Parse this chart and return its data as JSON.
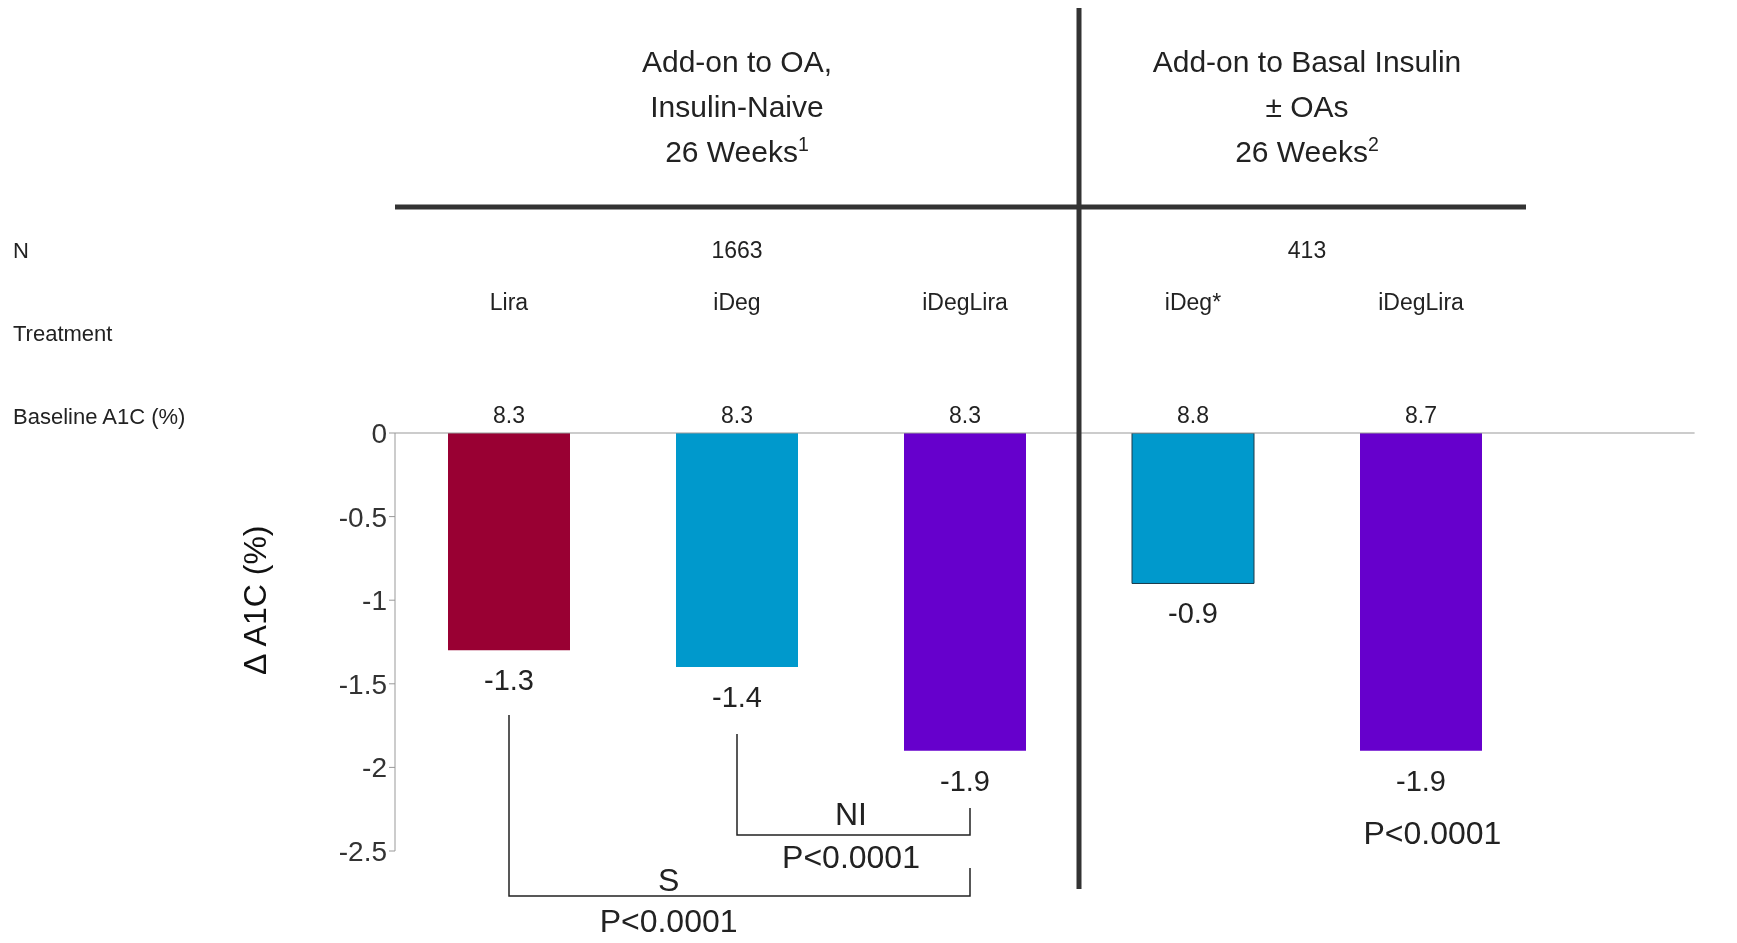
{
  "chart_data": {
    "type": "bar",
    "ylabel": "Δ A1C (%)",
    "categories": [
      "Lira",
      "iDeg",
      "iDegLira",
      "iDeg*",
      "iDegLira"
    ],
    "values": [
      -1.3,
      -1.4,
      -1.9,
      -0.9,
      -1.9
    ],
    "colors": [
      "#990033",
      "#0099cc",
      "#6600cc",
      "#0099cc",
      "#6600cc"
    ],
    "ylim": [
      -2.5,
      0
    ],
    "yticks": [
      0,
      -0.5,
      -1,
      -1.5,
      -2,
      -2.5
    ],
    "data_labels": true,
    "grid": false,
    "legend": false,
    "annotations": [
      "Add-on to OA,\nInsulin-Naive\n26 Weeks$^{1}$",
      "Add-on to Basal Insulin\n± OAs\n26 Weeks$^{2}$",
      "N",
      "1663",
      "413",
      "Treatment",
      "Baseline A1C (%)",
      "8.3",
      "8.3",
      "8.3",
      "8.8",
      "8.7",
      "S",
      "P<0.0001",
      "NI",
      "P<0.0001",
      "P<0.0001"
    ]
  }
}
